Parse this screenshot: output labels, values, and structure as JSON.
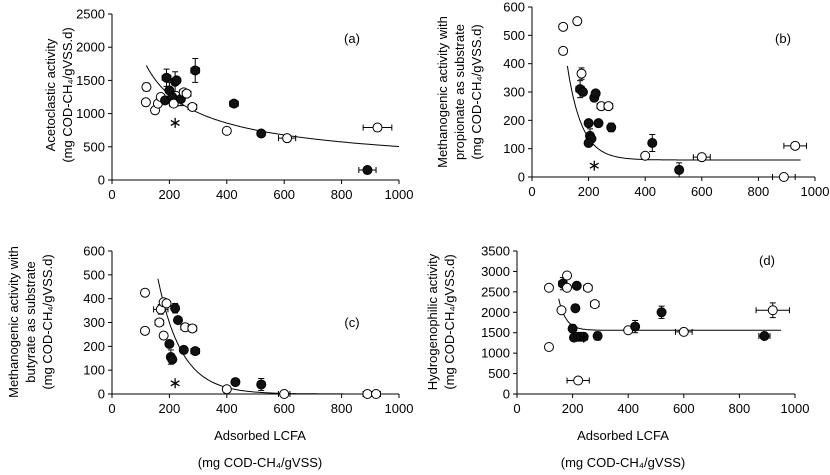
{
  "chart_data": [
    {
      "id": "a",
      "type": "scatter",
      "panel_label": "(a)",
      "ylabel_lines": [
        "Acetoclastic activity",
        "(mg COD-CH₄/gVSS.d)"
      ],
      "xlabel_lines": [],
      "xlim": [
        0,
        1000
      ],
      "ylim": [
        0,
        2500
      ],
      "xticks": [
        0,
        200,
        400,
        600,
        800,
        1000
      ],
      "yticks": [
        0,
        500,
        1000,
        1500,
        2000,
        2500
      ],
      "curve": {
        "type": "power",
        "a": 27700,
        "b": -0.58,
        "x_from": 120,
        "x_to": 1000
      },
      "points": [
        {
          "x": 120,
          "y": 1400,
          "filled": false,
          "xerr": 10,
          "yerr": 60
        },
        {
          "x": 118,
          "y": 1170,
          "filled": false,
          "xerr": 10,
          "yerr": 50
        },
        {
          "x": 150,
          "y": 1050,
          "filled": false,
          "xerr": 12,
          "yerr": 50
        },
        {
          "x": 160,
          "y": 1150,
          "filled": false,
          "xerr": 12,
          "yerr": 50
        },
        {
          "x": 170,
          "y": 1250,
          "filled": false,
          "xerr": 12,
          "yerr": 50
        },
        {
          "x": 185,
          "y": 1200,
          "filled": true,
          "xerr": 0,
          "yerr": 0
        },
        {
          "x": 190,
          "y": 1540,
          "filled": true,
          "xerr": 15,
          "yerr": 130
        },
        {
          "x": 200,
          "y": 1350,
          "filled": true,
          "xerr": 0,
          "yerr": 120
        },
        {
          "x": 210,
          "y": 1250,
          "filled": true,
          "xerr": 0,
          "yerr": 0
        },
        {
          "x": 215,
          "y": 1150,
          "filled": false,
          "xerr": 15,
          "yerr": 50
        },
        {
          "x": 220,
          "y": 1480,
          "filled": true,
          "xerr": 0,
          "yerr": 150
        },
        {
          "x": 225,
          "y": 1500,
          "filled": true,
          "xerr": 0,
          "yerr": 0
        },
        {
          "x": 240,
          "y": 1220,
          "filled": true,
          "xerr": 0,
          "yerr": 100
        },
        {
          "x": 250,
          "y": 1320,
          "filled": false,
          "xerr": 15,
          "yerr": 50
        },
        {
          "x": 260,
          "y": 1300,
          "filled": false,
          "xerr": 15,
          "yerr": 50
        },
        {
          "x": 280,
          "y": 1100,
          "filled": false,
          "xerr": 15,
          "yerr": 50
        },
        {
          "x": 290,
          "y": 1650,
          "filled": true,
          "xerr": 15,
          "yerr": 180
        },
        {
          "x": 425,
          "y": 1150,
          "filled": true,
          "xerr": 15,
          "yerr": 40
        },
        {
          "x": 400,
          "y": 740,
          "filled": false,
          "xerr": 12,
          "yerr": 30
        },
        {
          "x": 520,
          "y": 700,
          "filled": true,
          "xerr": 12,
          "yerr": 40
        },
        {
          "x": 610,
          "y": 630,
          "filled": false,
          "xerr": 30,
          "yerr": 30
        },
        {
          "x": 925,
          "y": 790,
          "filled": false,
          "xerr": 50,
          "yerr": 20
        },
        {
          "x": 890,
          "y": 150,
          "filled": true,
          "xerr": 30,
          "yerr": 40
        }
      ],
      "stars": [
        {
          "x": 220,
          "y": 860
        }
      ]
    },
    {
      "id": "b",
      "type": "scatter",
      "panel_label": "(b)",
      "ylabel_lines": [
        "Methanogenic activity with",
        "propionate as substrate",
        "(mg COD-CH₄/gVSS.d)"
      ],
      "xlabel_lines": [],
      "xlim": [
        0,
        1000
      ],
      "ylim": [
        0,
        600
      ],
      "xticks": [
        0,
        200,
        400,
        600,
        800,
        1000
      ],
      "yticks": [
        0,
        100,
        200,
        300,
        400,
        500,
        600
      ],
      "curve": {
        "type": "exp",
        "a": 3800,
        "b": 0.0195,
        "c": 60,
        "x_from": 125,
        "x_to": 950
      },
      "points": [
        {
          "x": 110,
          "y": 530,
          "filled": false,
          "xerr": 8,
          "yerr": 10
        },
        {
          "x": 110,
          "y": 445,
          "filled": false,
          "xerr": 8,
          "yerr": 10
        },
        {
          "x": 160,
          "y": 550,
          "filled": false,
          "xerr": 10,
          "yerr": 10
        },
        {
          "x": 175,
          "y": 365,
          "filled": false,
          "xerr": 12,
          "yerr": 20
        },
        {
          "x": 170,
          "y": 310,
          "filled": true,
          "xerr": 15,
          "yerr": 30
        },
        {
          "x": 180,
          "y": 300,
          "filled": true,
          "xerr": 0,
          "yerr": 0
        },
        {
          "x": 200,
          "y": 190,
          "filled": true,
          "xerr": 0,
          "yerr": 0
        },
        {
          "x": 205,
          "y": 145,
          "filled": true,
          "xerr": 0,
          "yerr": 25
        },
        {
          "x": 210,
          "y": 135,
          "filled": true,
          "xerr": 0,
          "yerr": 0
        },
        {
          "x": 200,
          "y": 120,
          "filled": true,
          "xerr": 0,
          "yerr": 0
        },
        {
          "x": 220,
          "y": 280,
          "filled": true,
          "xerr": 0,
          "yerr": 0
        },
        {
          "x": 225,
          "y": 295,
          "filled": true,
          "xerr": 0,
          "yerr": 0
        },
        {
          "x": 235,
          "y": 190,
          "filled": true,
          "xerr": 0,
          "yerr": 0
        },
        {
          "x": 245,
          "y": 250,
          "filled": false,
          "xerr": 15,
          "yerr": 10
        },
        {
          "x": 270,
          "y": 250,
          "filled": false,
          "xerr": 15,
          "yerr": 10
        },
        {
          "x": 280,
          "y": 175,
          "filled": true,
          "xerr": 0,
          "yerr": 15
        },
        {
          "x": 400,
          "y": 75,
          "filled": false,
          "xerr": 12,
          "yerr": 10
        },
        {
          "x": 425,
          "y": 120,
          "filled": true,
          "xerr": 0,
          "yerr": 30
        },
        {
          "x": 520,
          "y": 25,
          "filled": true,
          "xerr": 0,
          "yerr": 25
        },
        {
          "x": 600,
          "y": 70,
          "filled": false,
          "xerr": 30,
          "yerr": 10
        },
        {
          "x": 930,
          "y": 110,
          "filled": false,
          "xerr": 40,
          "yerr": 10
        },
        {
          "x": 890,
          "y": 0,
          "filled": false,
          "xerr": 40,
          "yerr": 0
        }
      ],
      "stars": [
        {
          "x": 220,
          "y": 40
        }
      ]
    },
    {
      "id": "c",
      "type": "scatter",
      "panel_label": "(c)",
      "ylabel_lines": [
        "Methanogenic activity with",
        "butyrate as substrate",
        "(mg COD-CH₄/gVSS.d)"
      ],
      "xlabel_lines": [
        "Adsorbed LCFA",
        "(mg COD-CH₄/gVSS)"
      ],
      "xlim": [
        0,
        1000
      ],
      "ylim": [
        0,
        600
      ],
      "xticks": [
        0,
        200,
        400,
        600,
        800,
        1000
      ],
      "yticks": [
        0,
        100,
        200,
        300,
        400,
        500,
        600
      ],
      "curve": {
        "type": "exp",
        "a": 3300,
        "b": 0.012,
        "c": 0,
        "x_from": 160,
        "x_to": 900
      },
      "points": [
        {
          "x": 115,
          "y": 425,
          "filled": false,
          "xerr": 10,
          "yerr": 10
        },
        {
          "x": 115,
          "y": 265,
          "filled": false,
          "xerr": 10,
          "yerr": 15
        },
        {
          "x": 165,
          "y": 300,
          "filled": false,
          "xerr": 15,
          "yerr": 15
        },
        {
          "x": 170,
          "y": 355,
          "filled": false,
          "xerr": 25,
          "yerr": 20
        },
        {
          "x": 180,
          "y": 385,
          "filled": false,
          "xerr": 12,
          "yerr": 15
        },
        {
          "x": 180,
          "y": 245,
          "filled": false,
          "xerr": 10,
          "yerr": 15
        },
        {
          "x": 190,
          "y": 380,
          "filled": false,
          "xerr": 12,
          "yerr": 10
        },
        {
          "x": 200,
          "y": 210,
          "filled": true,
          "xerr": 0,
          "yerr": 0
        },
        {
          "x": 205,
          "y": 155,
          "filled": true,
          "xerr": 0,
          "yerr": 30
        },
        {
          "x": 210,
          "y": 145,
          "filled": true,
          "xerr": 0,
          "yerr": 0
        },
        {
          "x": 220,
          "y": 360,
          "filled": true,
          "xerr": 0,
          "yerr": 20
        },
        {
          "x": 230,
          "y": 310,
          "filled": true,
          "xerr": 0,
          "yerr": 0
        },
        {
          "x": 250,
          "y": 185,
          "filled": true,
          "xerr": 0,
          "yerr": 0
        },
        {
          "x": 255,
          "y": 280,
          "filled": false,
          "xerr": 15,
          "yerr": 15
        },
        {
          "x": 280,
          "y": 275,
          "filled": false,
          "xerr": 15,
          "yerr": 15
        },
        {
          "x": 290,
          "y": 180,
          "filled": true,
          "xerr": 15,
          "yerr": 10
        },
        {
          "x": 400,
          "y": 20,
          "filled": false,
          "xerr": 12,
          "yerr": 10
        },
        {
          "x": 430,
          "y": 50,
          "filled": true,
          "xerr": 0,
          "yerr": 10
        },
        {
          "x": 520,
          "y": 40,
          "filled": true,
          "xerr": 0,
          "yerr": 25
        },
        {
          "x": 600,
          "y": 0,
          "filled": false,
          "xerr": 20,
          "yerr": 10
        },
        {
          "x": 890,
          "y": 0,
          "filled": false,
          "xerr": 15,
          "yerr": 0
        },
        {
          "x": 920,
          "y": 0,
          "filled": false,
          "xerr": 15,
          "yerr": 0
        }
      ],
      "stars": [
        {
          "x": 220,
          "y": 45
        }
      ]
    },
    {
      "id": "d",
      "type": "scatter",
      "panel_label": "(d)",
      "ylabel_lines": [
        "Hydrogenophilic activity",
        "(mg COD-CH₄/gVSS.d)"
      ],
      "xlabel_lines": [
        "Adsorbed LCFA",
        "(mg COD-CH₄/gVSS)"
      ],
      "xlim": [
        0,
        1000
      ],
      "ylim": [
        0,
        3500
      ],
      "xticks": [
        0,
        200,
        400,
        600,
        800,
        1000
      ],
      "yticks": [
        0,
        500,
        1000,
        1500,
        2000,
        2500,
        3000,
        3500
      ],
      "curve": {
        "type": "exp",
        "a": 230000,
        "b": 0.038,
        "c": 1560,
        "x_from": 150,
        "x_to": 950
      },
      "points": [
        {
          "x": 115,
          "y": 2600,
          "filled": false,
          "xerr": 10,
          "yerr": 60
        },
        {
          "x": 115,
          "y": 1150,
          "filled": false,
          "xerr": 10,
          "yerr": 60
        },
        {
          "x": 160,
          "y": 2050,
          "filled": false,
          "xerr": 10,
          "yerr": 60
        },
        {
          "x": 165,
          "y": 2700,
          "filled": true,
          "xerr": 15,
          "yerr": 150
        },
        {
          "x": 180,
          "y": 2900,
          "filled": false,
          "xerr": 12,
          "yerr": 60
        },
        {
          "x": 180,
          "y": 2600,
          "filled": false,
          "xerr": 12,
          "yerr": 60
        },
        {
          "x": 200,
          "y": 1600,
          "filled": true,
          "xerr": 0,
          "yerr": 100
        },
        {
          "x": 205,
          "y": 1380,
          "filled": true,
          "xerr": 0,
          "yerr": 0
        },
        {
          "x": 210,
          "y": 2100,
          "filled": true,
          "xerr": 0,
          "yerr": 0
        },
        {
          "x": 215,
          "y": 2650,
          "filled": true,
          "xerr": 0,
          "yerr": 0
        },
        {
          "x": 220,
          "y": 1400,
          "filled": true,
          "xerr": 0,
          "yerr": 0
        },
        {
          "x": 230,
          "y": 1400,
          "filled": true,
          "xerr": 0,
          "yerr": 0
        },
        {
          "x": 240,
          "y": 1400,
          "filled": true,
          "xerr": 0,
          "yerr": 0
        },
        {
          "x": 255,
          "y": 2600,
          "filled": false,
          "xerr": 15,
          "yerr": 60
        },
        {
          "x": 280,
          "y": 2200,
          "filled": false,
          "xerr": 15,
          "yerr": 60
        },
        {
          "x": 290,
          "y": 1420,
          "filled": true,
          "xerr": 0,
          "yerr": 100
        },
        {
          "x": 400,
          "y": 1560,
          "filled": false,
          "xerr": 10,
          "yerr": 60
        },
        {
          "x": 425,
          "y": 1650,
          "filled": true,
          "xerr": 0,
          "yerr": 150
        },
        {
          "x": 520,
          "y": 2000,
          "filled": true,
          "xerr": 0,
          "yerr": 150
        },
        {
          "x": 600,
          "y": 1520,
          "filled": false,
          "xerr": 30,
          "yerr": 60
        },
        {
          "x": 890,
          "y": 1420,
          "filled": true,
          "xerr": 20,
          "yerr": 50
        },
        {
          "x": 920,
          "y": 2050,
          "filled": false,
          "xerr": 60,
          "yerr": 180
        },
        {
          "x": 220,
          "y": 330,
          "filled": false,
          "xerr": 40,
          "yerr": 0
        }
      ],
      "stars": [
        {
          "x": 240,
          "y": 1380
        }
      ]
    }
  ]
}
